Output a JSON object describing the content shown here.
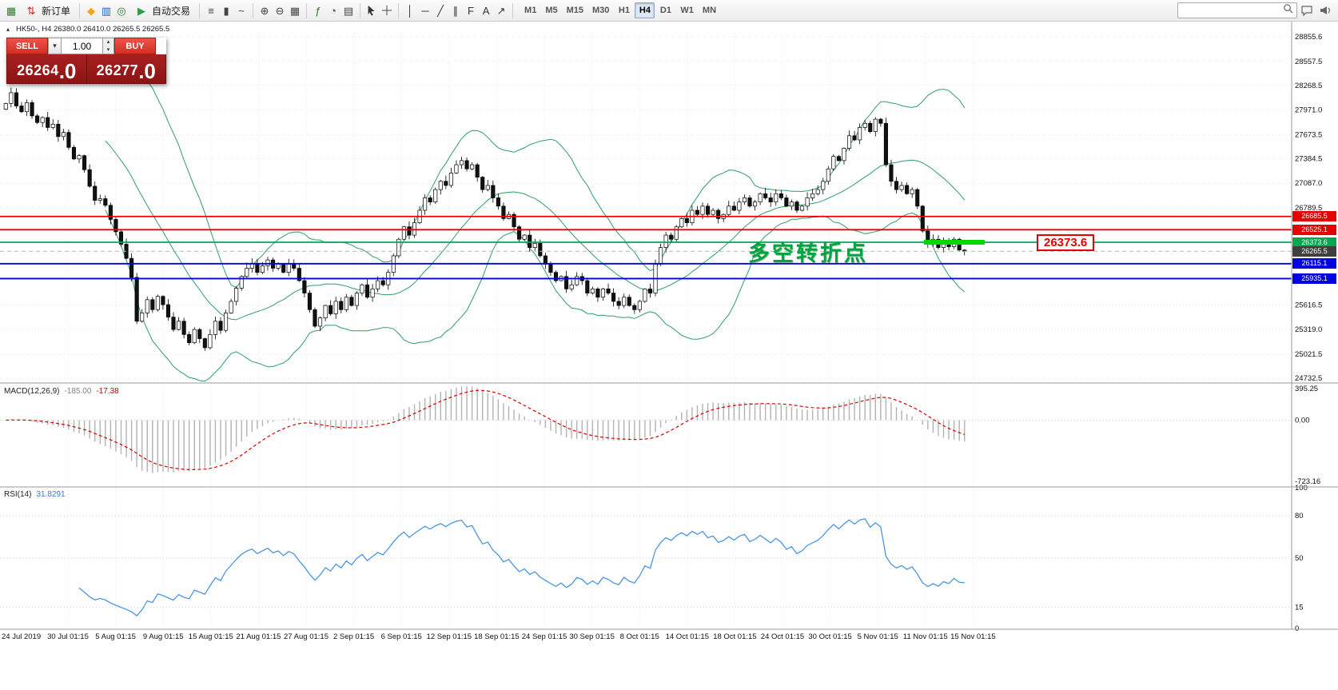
{
  "toolbar": {
    "new_order": "新订单",
    "auto_trading": "自动交易",
    "timeframes": [
      "M1",
      "M5",
      "M15",
      "M30",
      "H1",
      "H4",
      "D1",
      "W1",
      "MN"
    ],
    "active_timeframe": "H4",
    "search_value": ""
  },
  "icons": {
    "app": {
      "glyph": "▦",
      "color": "#2e7d32"
    },
    "new-order": {
      "glyph": "⇅",
      "color": "#c62828"
    },
    "market-watch": {
      "glyph": "◆",
      "color": "#f2a515"
    },
    "data-window": {
      "glyph": "▥",
      "color": "#1565c0"
    },
    "navigator": {
      "glyph": "◎",
      "color": "#2e7d32"
    },
    "auto-trading": {
      "glyph": "▶",
      "color": "#2e9e44"
    },
    "bars-chart": {
      "glyph": "≡",
      "color": "#444444"
    },
    "candles-chart": {
      "glyph": "▮",
      "color": "#444444"
    },
    "line-chart": {
      "glyph": "~",
      "color": "#444444"
    },
    "zoom-in": {
      "glyph": "⊕",
      "color": "#444444"
    },
    "zoom-out": {
      "glyph": "⊖",
      "color": "#444444"
    },
    "tile-windows": {
      "glyph": "▦",
      "color": "#444444"
    },
    "indicators": {
      "glyph": "ƒ",
      "color": "#1a7a2a"
    },
    "periods": {
      "glyph": "◔",
      "color": "#444444"
    },
    "templates": {
      "glyph": "▤",
      "color": "#444444"
    },
    "vline": {
      "glyph": "│",
      "color": "#333333"
    },
    "hline": {
      "glyph": "─",
      "color": "#333333"
    },
    "trendline": {
      "glyph": "╱",
      "color": "#333333"
    },
    "channel": {
      "glyph": "∥",
      "color": "#333333"
    },
    "fibo": {
      "glyph": "F",
      "color": "#333333"
    },
    "text-tool": {
      "glyph": "A",
      "color": "#333333"
    },
    "arrows-tool": {
      "glyph": "↗",
      "color": "#333333"
    },
    "collapse": {
      "glyph": "▴",
      "color": "#333333"
    },
    "dropdown": {
      "glyph": "▾",
      "color": "#333333"
    },
    "spin-up": {
      "glyph": "▴",
      "color": "#333333"
    },
    "spin-down": {
      "glyph": "▾",
      "color": "#333333"
    }
  },
  "chart": {
    "title": "HK50-, H4 26380.0 26410.0 26265.5 26265.5",
    "trade_panel": {
      "sell_label": "SELL",
      "buy_label": "BUY",
      "volume": "1.00",
      "sell_price_main": "26264",
      "sell_price_frac": ".0",
      "buy_price_main": "26277",
      "buy_price_frac": ".0"
    },
    "annotation": "多空转折点",
    "price_flag": "26373.6",
    "y_ticks": [
      {
        "label": "28855.6",
        "value": 28855.6
      },
      {
        "label": "28557.5",
        "value": 28557.5
      },
      {
        "label": "28268.5",
        "value": 28268.5
      },
      {
        "label": "27971.0",
        "value": 27971.0
      },
      {
        "label": "27673.5",
        "value": 27673.5
      },
      {
        "label": "27384.5",
        "value": 27384.5
      },
      {
        "label": "27087.0",
        "value": 27087.0
      },
      {
        "label": "26789.5",
        "value": 26789.5
      },
      {
        "label": "25616.5",
        "value": 25616.5
      },
      {
        "label": "25319.0",
        "value": 25319.0
      },
      {
        "label": "25021.5",
        "value": 25021.5
      },
      {
        "label": "24732.5",
        "value": 24732.5
      }
    ],
    "levels": [
      {
        "label": "26685.5",
        "price": 26685.5,
        "color": "#e60000",
        "style": "solid",
        "width": 1.8,
        "tag_color": "#e60000"
      },
      {
        "label": "26525.1",
        "price": 26525.1,
        "color": "#e60000",
        "style": "solid",
        "width": 1.8,
        "tag_color": "#e60000"
      },
      {
        "label": "26373.6",
        "price": 26373.6,
        "color": "#00a94f",
        "style": "solid",
        "width": 1.8,
        "tag_color": "#00a94f"
      },
      {
        "label": "26265.5",
        "price": 26265.5,
        "color": "#b5b5b5",
        "style": "dashed",
        "width": 1,
        "tag_color": "#3f3f3f"
      },
      {
        "label": "26115.1",
        "price": 26115.1,
        "color": "#0000e0",
        "style": "solid",
        "width": 1.8,
        "tag_color": "#0000e0"
      },
      {
        "label": "25935.1",
        "price": 25935.1,
        "color": "#0000e0",
        "style": "solid",
        "width": 1.8,
        "tag_color": "#0000e0"
      }
    ],
    "highlight": {
      "price": 26373.6,
      "color": "#00d800"
    }
  },
  "chart_data": {
    "type": "candlestick",
    "symbol": "HK50",
    "timeframe": "H4",
    "title": "HK50-, H4",
    "ohlc_header": {
      "open": "26380.0",
      "high": "26410.0",
      "low": "26265.5",
      "close": "26265.5"
    },
    "ylim": [
      24732.5,
      28855.6
    ],
    "first_open": 27980,
    "closes": [
      28050,
      28180,
      28020,
      27950,
      28060,
      27900,
      27820,
      27880,
      27760,
      27800,
      27650,
      27700,
      27520,
      27380,
      27420,
      27250,
      27050,
      26880,
      26900,
      26820,
      26650,
      26500,
      26350,
      26180,
      25950,
      25420,
      25520,
      25680,
      25560,
      25720,
      25620,
      25470,
      25320,
      25420,
      25260,
      25160,
      25320,
      25210,
      25100,
      25260,
      25420,
      25310,
      25520,
      25660,
      25820,
      25960,
      26060,
      26120,
      26010,
      26090,
      26160,
      26060,
      26110,
      26010,
      26110,
      26060,
      25910,
      25760,
      25560,
      25360,
      25460,
      25610,
      25510,
      25660,
      25560,
      25710,
      25610,
      25760,
      25860,
      25710,
      25810,
      25910,
      25860,
      26010,
      26210,
      26410,
      26560,
      26460,
      26610,
      26760,
      26910,
      26860,
      27010,
      27110,
      27060,
      27210,
      27310,
      27360,
      27260,
      27310,
      27160,
      27010,
      27060,
      26910,
      26810,
      26660,
      26710,
      26560,
      26410,
      26460,
      26310,
      26360,
      26210,
      26110,
      26010,
      25910,
      25960,
      25810,
      25860,
      25960,
      25910,
      25760,
      25810,
      25710,
      25810,
      25760,
      25660,
      25610,
      25710,
      25610,
      25560,
      25660,
      25810,
      25760,
      26110,
      26310,
      26460,
      26410,
      26560,
      26660,
      26610,
      26760,
      26710,
      26810,
      26710,
      26760,
      26660,
      26710,
      26810,
      26760,
      26860,
      26910,
      26810,
      26860,
      26960,
      26910,
      26860,
      26960,
      26910,
      26810,
      26860,
      26760,
      26810,
      26910,
      26960,
      27010,
      27110,
      27260,
      27410,
      27360,
      27510,
      27660,
      27610,
      27760,
      27810,
      27710,
      27860,
      27810,
      27310,
      27110,
      27010,
      27060,
      26960,
      27010,
      26810,
      26510,
      26360,
      26410,
      26310,
      26390,
      26320,
      26410,
      26280,
      26265.5
    ],
    "bollinger": {
      "period": 20,
      "deviation": 2
    }
  },
  "macd": {
    "label": "MACD(12,26,9)",
    "main_value": "-185.00",
    "signal_value": "-17.38",
    "axis": [
      "395.25",
      "0.00",
      "-723.16"
    ],
    "range": [
      395.25,
      -723.16
    ],
    "params": [
      12,
      26,
      9
    ]
  },
  "rsi": {
    "label": "RSI(14)",
    "value": "31.8291",
    "axis": [
      "100",
      "80",
      "50",
      "15",
      "0"
    ],
    "levels": [
      80,
      50,
      15
    ],
    "range": [
      0,
      100
    ],
    "period": 14
  },
  "time_axis": [
    "24 Jul 2019",
    "30 Jul 01:15",
    "5 Aug 01:15",
    "9 Aug 01:15",
    "15 Aug 01:15",
    "21 Aug 01:15",
    "27 Aug 01:15",
    "2 Sep 01:15",
    "6 Sep 01:15",
    "12 Sep 01:15",
    "18 Sep 01:15",
    "24 Sep 01:15",
    "30 Sep 01:15",
    "8 Oct 01:15",
    "14 Oct 01:15",
    "18 Oct 01:15",
    "24 Oct 01:15",
    "30 Oct 01:15",
    "5 Nov 01:15",
    "11 Nov 01:15",
    "15 Nov 01:15"
  ]
}
